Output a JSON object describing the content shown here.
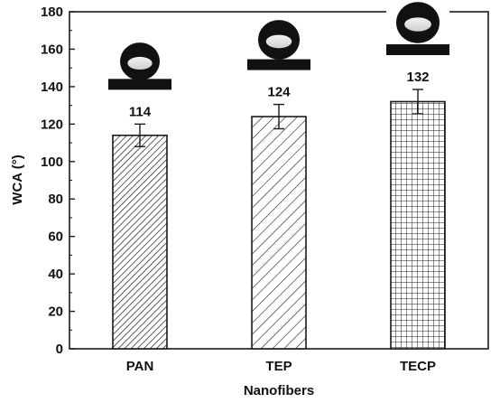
{
  "chart_data": {
    "type": "bar",
    "categories": [
      "PAN",
      "TEP",
      "TECP"
    ],
    "values": [
      114,
      124,
      132
    ],
    "errors": [
      6,
      6.5,
      6.5
    ],
    "data_labels": [
      "114",
      "124",
      "132"
    ],
    "title": "",
    "xlabel": "Nanofibers",
    "ylabel": "WCA (°)",
    "ylim": [
      0,
      180
    ],
    "yticks": [
      0,
      20,
      40,
      60,
      80,
      100,
      120,
      140,
      160,
      180
    ],
    "grid": false,
    "bar_patterns": [
      "dense-diagonal",
      "sparse-diagonal",
      "crosshatch-grid"
    ],
    "inset_images": [
      "water-droplet-photo",
      "water-droplet-photo",
      "water-droplet-photo"
    ],
    "colors": {
      "bar_fill": "#ffffff",
      "bar_stroke": "#1a1a1a",
      "axis": "#1a1a1a",
      "droplet": "#111111"
    }
  }
}
